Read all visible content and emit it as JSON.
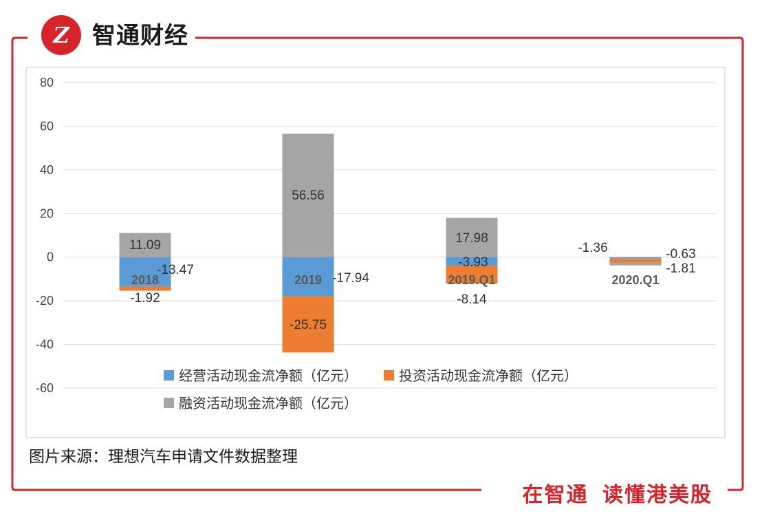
{
  "brand": {
    "name": "智通财经",
    "logo_text": "Z",
    "slogan_part1": "在智通",
    "slogan_part2": "读懂港美股"
  },
  "source_note": "图片来源：理想汽车申请文件数据整理",
  "colors": {
    "frame": "#d7242a",
    "operating": "#5b9bd5",
    "investing": "#ed7d31",
    "financing": "#a5a5a5",
    "grid": "#d9d9d9"
  },
  "chart_data": {
    "type": "bar",
    "stacked": true,
    "categories": [
      "2018",
      "2019",
      "2019.Q1",
      "2020.Q1"
    ],
    "series": [
      {
        "name": "经营活动现金流净额（亿元）",
        "values": [
          -13.47,
          -17.94,
          -3.93,
          -0.63
        ]
      },
      {
        "name": "投资活动现金流净额（亿元）",
        "values": [
          -1.92,
          -25.75,
          -8.14,
          -1.81
        ]
      },
      {
        "name": "融资活动现金流净额（亿元）",
        "values": [
          11.09,
          56.56,
          17.98,
          -1.36
        ]
      }
    ],
    "data_labels": {
      "operating": [
        "-13.47",
        "-17.94",
        "-3.93",
        "-0.63"
      ],
      "investing": [
        "-1.92",
        "-25.75",
        "-8.14",
        "-1.81"
      ],
      "financing": [
        "11.09",
        "56.56",
        "17.98",
        "-1.36"
      ]
    },
    "yticks": [
      "80",
      "60",
      "40",
      "20",
      "0",
      "-20",
      "-40",
      "-60"
    ],
    "ylim": [
      -60,
      80
    ],
    "grid": true,
    "legend_position": "bottom-center"
  }
}
